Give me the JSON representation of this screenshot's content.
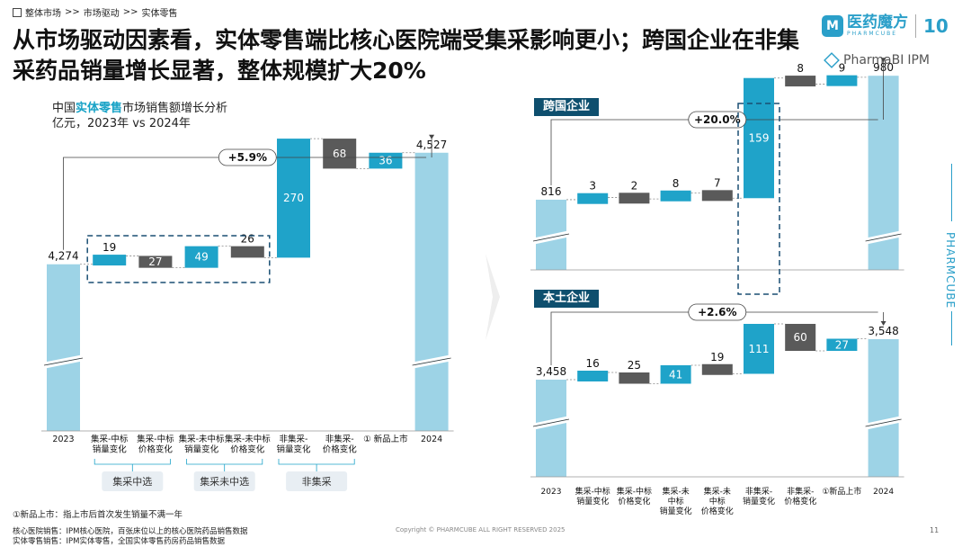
{
  "breadcrumb": {
    "items": [
      "整体市场",
      ">>",
      "市场驱动",
      ">>",
      "实体零售"
    ]
  },
  "title": "从市场驱动因素看，实体零售端比核心医院端受集采影响更小；跨国企业在非集采药品销量增长显著，整体规模扩大20%",
  "brand": {
    "name_cn": "医药魔方",
    "name_en": "PHARMCUBE",
    "anniversary": "10",
    "product": "PharmaBI",
    "product_suffix": "IPM",
    "vertical": "PHARMCUBE"
  },
  "left_chart": {
    "subtitle_pre": "中国",
    "subtitle_highlight": "实体零售",
    "subtitle_post": "市场销售额增长分析",
    "subtitle_line2": "亿元，2023年 vs 2024年",
    "growth_label": "+5.9%",
    "groups": [
      "集采中选",
      "集采未中选",
      "非集采"
    ]
  },
  "right_top": {
    "panel_label": "跨国企业",
    "growth_label": "+20.0%"
  },
  "right_bottom": {
    "panel_label": "本土企业",
    "growth_label": "+2.6%"
  },
  "chart_data": [
    {
      "type": "waterfall",
      "title": "中国实体零售市场销售额增长分析",
      "unit": "亿元",
      "categories": [
        "2023",
        "集采-中标销量变化",
        "集采-中标价格变化",
        "集采-未中标销量变化",
        "集采-未中标价格变化",
        "非集采-销量变化",
        "非集采-价格变化",
        "①新品上市",
        "2024"
      ],
      "values": [
        4274,
        19,
        -27,
        49,
        -26,
        270,
        -68,
        36,
        4527
      ],
      "labels": [
        "4,274",
        "19",
        "27",
        "49",
        "26",
        "270",
        "68",
        "36",
        "4,527"
      ],
      "growth": "+5.9%"
    },
    {
      "type": "waterfall",
      "title": "跨国企业",
      "categories": [
        "2023",
        "集采-中标销量变化",
        "集采-中标价格变化",
        "集采-未中标销量变化",
        "集采-未中标价格变化",
        "非集采-销量变化",
        "非集采-价格变化",
        "①新品上市",
        "2024"
      ],
      "values": [
        816,
        3,
        -2,
        8,
        -7,
        159,
        -8,
        9,
        980
      ],
      "labels": [
        "816",
        "3",
        "2",
        "8",
        "7",
        "159",
        "8",
        "9",
        "980"
      ],
      "growth": "+20.0%"
    },
    {
      "type": "waterfall",
      "title": "本土企业",
      "categories": [
        "2023",
        "集采-中标销量变化",
        "集采-中标价格变化",
        "集采-未中标销量变化",
        "集采-未中标价格变化",
        "非集采-销量变化",
        "非集采-价格变化",
        "①新品上市",
        "2024"
      ],
      "values": [
        3458,
        16,
        -25,
        41,
        -19,
        111,
        -60,
        27,
        3548
      ],
      "labels": [
        "3,458",
        "16",
        "25",
        "41",
        "19",
        "111",
        "60",
        "27",
        "3,548"
      ],
      "growth": "+2.6%"
    }
  ],
  "left_axis_labels": [
    "2023",
    "集采-中标\n销量变化",
    "集采-中标\n价格变化",
    "集采-未中标\n销量变化",
    "集采-未中标\n价格变化",
    "非集采-\n销量变化",
    "非集采-\n价格变化",
    "① 新品上市",
    "2024"
  ],
  "right_axis_labels": [
    "2023",
    "集采-中标\n销量变化",
    "集采-中标\n价格变化",
    "集采-未\n中标\n销量变化",
    "集采-未\n中标\n价格变化",
    "非集采-\n销量变化",
    "非集采-\n价格变化",
    "①新品上市",
    "2024"
  ],
  "footnotes": {
    "new_product": "①新品上市：指上市后首次发生销量不满一年",
    "source1": "核心医院销售：IPM核心医院，百张床位以上的核心医院药品销售数据",
    "source2": "实体零售销售：IPM实体零售，全国实体零售药房药品销售数据"
  },
  "copyright": "Copyright © PHARMCUBE ALL RIGHT RESERVED 2025",
  "page_number": "11",
  "colors": {
    "total": "#9dd3e6",
    "positive": "#1fa3c9",
    "negative": "#5a5a5a",
    "accent": "#0e4f6e",
    "dashed": "#1a4f73"
  }
}
